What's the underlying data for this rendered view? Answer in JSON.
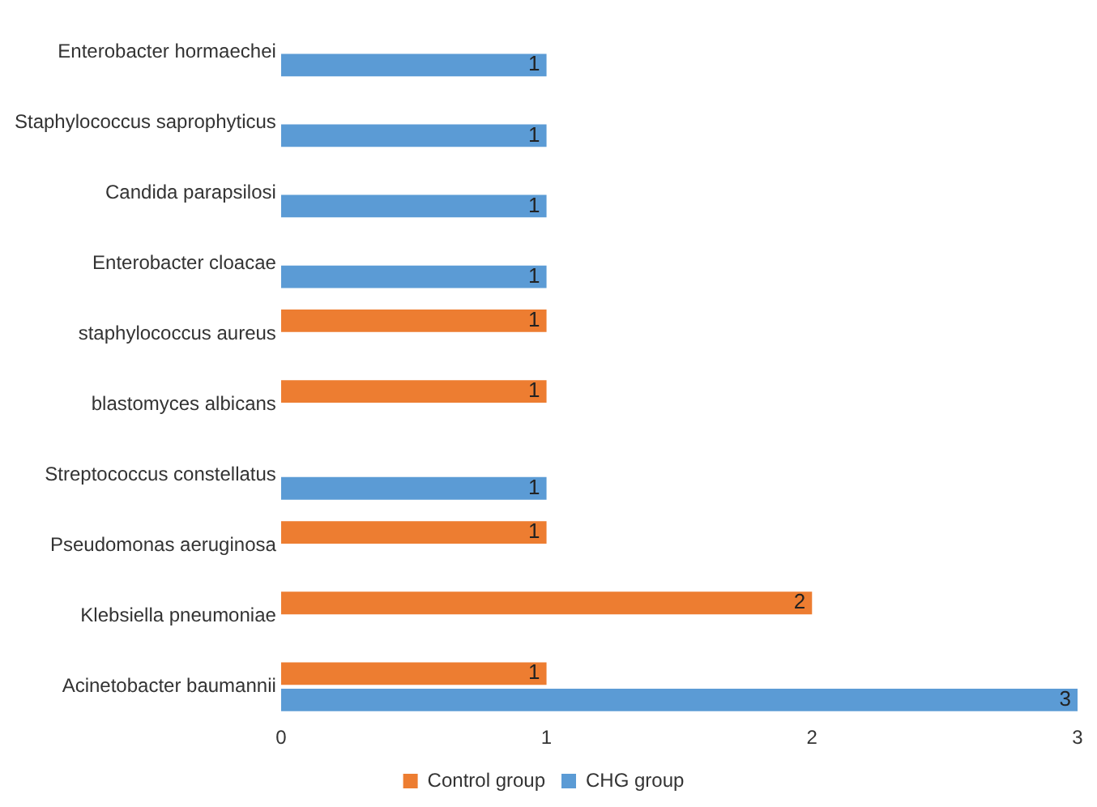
{
  "chart_data": {
    "type": "bar",
    "orientation": "horizontal",
    "categories": [
      "Enterobacter hormaechei",
      "Staphylococcus saprophyticus",
      "Candida parapsilosi",
      "Enterobacter cloacae",
      "staphylococcus aureus",
      "blastomyces albicans",
      "Streptococcus constellatus",
      "Pseudomonas aeruginosa",
      "Klebsiella pneumoniae",
      "Acinetobacter baumannii"
    ],
    "series": [
      {
        "name": "Control group",
        "color": "#ed7d31",
        "values": [
          null,
          null,
          null,
          null,
          1,
          1,
          null,
          1,
          2,
          1
        ]
      },
      {
        "name": "CHG group",
        "color": "#5b9bd5",
        "values": [
          1,
          1,
          1,
          1,
          null,
          null,
          1,
          null,
          null,
          3
        ]
      }
    ],
    "xlim": [
      0,
      3
    ],
    "xticks": [
      0,
      1,
      2,
      3
    ],
    "grid": false,
    "legend": "bottom",
    "data_labels": true
  }
}
